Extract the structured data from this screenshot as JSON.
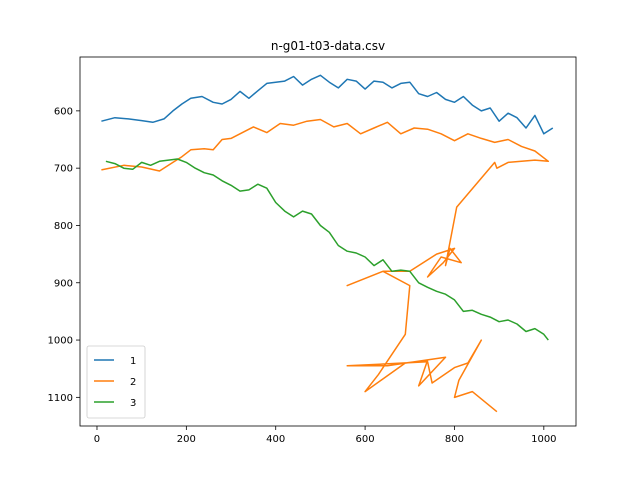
{
  "chart_data": {
    "type": "line",
    "title": "n-g01-t03-data.csv",
    "xlabel": "",
    "ylabel": "",
    "xlim": [
      -38,
      1072
    ],
    "ylim": [
      1150,
      506
    ],
    "y_inverted": true,
    "x_ticks": [
      0,
      200,
      400,
      600,
      800,
      1000
    ],
    "y_ticks": [
      600,
      700,
      800,
      900,
      1000,
      1100
    ],
    "grid": false,
    "legend_position": "lower-left",
    "series": [
      {
        "name": "1",
        "color": "#1f77b4",
        "x": [
          10,
          40,
          70,
          100,
          125,
          150,
          170,
          190,
          210,
          235,
          260,
          280,
          300,
          320,
          340,
          360,
          380,
          400,
          420,
          440,
          460,
          480,
          500,
          520,
          540,
          560,
          580,
          600,
          620,
          640,
          660,
          680,
          700,
          720,
          740,
          760,
          780,
          800,
          820,
          840,
          860,
          880,
          900,
          920,
          940,
          960,
          980,
          1000,
          1020
        ],
        "y": [
          618,
          612,
          614,
          617,
          620,
          614,
          600,
          588,
          578,
          575,
          585,
          588,
          580,
          566,
          578,
          565,
          552,
          550,
          548,
          540,
          555,
          545,
          538,
          550,
          560,
          545,
          548,
          562,
          548,
          550,
          560,
          552,
          550,
          570,
          575,
          568,
          580,
          585,
          575,
          590,
          600,
          595,
          618,
          604,
          612,
          630,
          608,
          640,
          630
        ]
      },
      {
        "name": "2",
        "color": "#ff7f0e",
        "x": [
          10,
          60,
          100,
          140,
          170,
          190,
          210,
          240,
          260,
          280,
          300,
          320,
          350,
          380,
          410,
          440,
          470,
          500,
          530,
          560,
          590,
          620,
          650,
          680,
          710,
          740,
          770,
          800,
          830,
          860,
          890,
          920,
          950,
          980,
          1010,
          980,
          920,
          895,
          890,
          805,
          780,
          790,
          815,
          770,
          740,
          775,
          800,
          760,
          700,
          640,
          560,
          640,
          700,
          690,
          630,
          600,
          690,
          740,
          720,
          780,
          650,
          560,
          740,
          750,
          800,
          830,
          860,
          810,
          800,
          840,
          895
        ],
        "y": [
          703,
          695,
          698,
          705,
          690,
          680,
          668,
          666,
          668,
          650,
          648,
          640,
          628,
          638,
          622,
          625,
          618,
          615,
          628,
          622,
          640,
          630,
          620,
          640,
          630,
          632,
          640,
          652,
          640,
          648,
          655,
          650,
          662,
          670,
          688,
          686,
          690,
          700,
          690,
          768,
          870,
          840,
          865,
          855,
          890,
          865,
          840,
          850,
          880,
          880,
          905,
          880,
          905,
          990,
          1060,
          1090,
          1040,
          1035,
          1080,
          1030,
          1045,
          1045,
          1038,
          1075,
          1048,
          1040,
          1000,
          1070,
          1100,
          1090,
          1125
        ]
      },
      {
        "name": "3",
        "color": "#2ca02c",
        "x": [
          20,
          40,
          60,
          80,
          100,
          120,
          140,
          160,
          180,
          200,
          220,
          240,
          260,
          280,
          300,
          320,
          340,
          360,
          380,
          400,
          420,
          440,
          460,
          480,
          500,
          520,
          540,
          560,
          580,
          600,
          620,
          640,
          660,
          680,
          700,
          720,
          740,
          760,
          780,
          800,
          820,
          840,
          860,
          880,
          900,
          920,
          940,
          960,
          980,
          1000,
          1010
        ],
        "y": [
          688,
          692,
          700,
          702,
          690,
          695,
          688,
          686,
          684,
          690,
          700,
          708,
          712,
          722,
          730,
          740,
          738,
          728,
          735,
          760,
          775,
          785,
          775,
          780,
          800,
          812,
          835,
          845,
          848,
          855,
          870,
          860,
          880,
          878,
          880,
          900,
          908,
          915,
          920,
          930,
          950,
          948,
          955,
          960,
          968,
          965,
          972,
          985,
          980,
          990,
          1000
        ]
      }
    ]
  }
}
